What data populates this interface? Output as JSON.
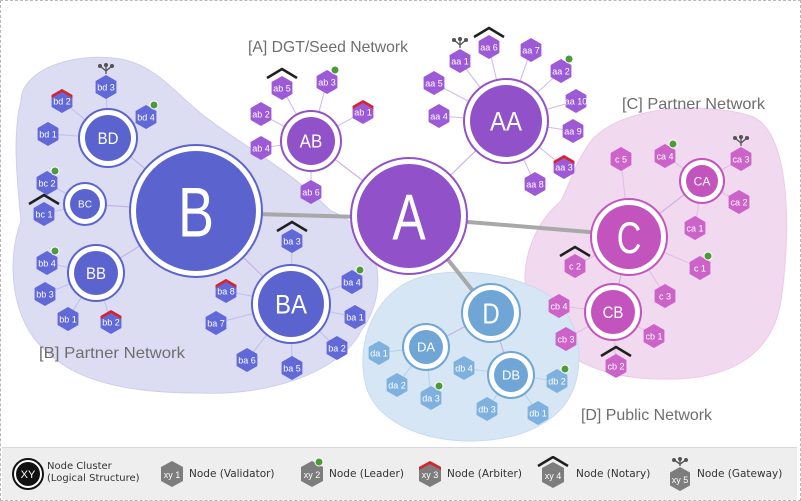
{
  "colors": {
    "blue_node": "#5b63cf",
    "blue_hex": "#6168d8",
    "purple_node": "#9152c9",
    "purple_hex": "#9d5ad6",
    "pink_node": "#c354be",
    "pink_hex": "#cc63c8",
    "light_node": "#6fa6d6",
    "light_hex": "#7fb1de",
    "leader_dot": "#4e9a3a",
    "arbiter_cap": "#d8242a",
    "notary_cap": "#1f1f1f",
    "legend_hex": "#7d7d7d"
  },
  "regions": {
    "dgt_seed": "[A] DGT/Seed Network",
    "b_partner": "[B] Partner Network",
    "c_partner": "[C] Partner Network",
    "d_public": "[D] Public Network"
  },
  "clusters": {
    "A": "A",
    "B": "B",
    "C": "C",
    "D": "D",
    "AA": "AA",
    "AB": "AB",
    "BA": "BA",
    "BB": "BB",
    "BC": "BC",
    "BD": "BD",
    "CA": "CA",
    "CB": "CB",
    "DA": "DA",
    "DB": "DB"
  },
  "nodes": {
    "aa1": "aa 1",
    "aa2": "aa 2",
    "aa3": "aa 3",
    "aa4": "aa 4",
    "aa5": "aa 5",
    "aa6": "aa 6",
    "aa7": "aa 7",
    "aa8": "aa 8",
    "aa9": "aa 9",
    "aa10": "aa 10",
    "ab1": "ab 1",
    "ab2": "ab 2",
    "ab3": "ab 3",
    "ab4": "ab 4",
    "ab5": "ab 5",
    "ab6": "ab 6",
    "ba1": "ba 1",
    "ba2": "ba 2",
    "ba3": "ba 3",
    "ba4": "ba 4",
    "ba5": "ba 5",
    "ba6": "ba 6",
    "ba7": "ba 7",
    "ba8": "ba 8",
    "bb1": "bb 1",
    "bb2": "bb 2",
    "bb3": "bb 3",
    "bb4": "bb 4",
    "bc1": "bc 1",
    "bc2": "bc 2",
    "bd1": "bd 1",
    "bd2": "bd 2",
    "bd3": "bd 3",
    "bd4": "bd 4",
    "ca1": "ca 1",
    "ca2": "ca 2",
    "ca3": "ca 3",
    "ca4": "ca 4",
    "c1": "c 1",
    "c2": "c 2",
    "c3": "c 3",
    "c5": "c 5",
    "cb1": "cb 1",
    "cb2": "cb 2",
    "cb3": "cb 3",
    "cb4": "cb 4",
    "da1": "da 1",
    "da2": "da 2",
    "da3": "da 3",
    "db1": "db 1",
    "db2": "db 2",
    "db3": "db 3",
    "db4": "db 4"
  },
  "legend": {
    "cluster_symbol": "XY",
    "cluster_line1": "Node Cluster",
    "cluster_line2": "(Logical Structure)",
    "validator_symbol": "xy 1",
    "validator_label": "Node (Validator)",
    "leader_symbol": "xy 2",
    "leader_label": "Node (Leader)",
    "arbiter_symbol": "xy 3",
    "arbiter_label": "Node (Arbiter)",
    "notary_symbol": "xy 4",
    "notary_label": "Node (Notary)",
    "gateway_symbol": "xy 5",
    "gateway_label": "Node (Gateway)"
  }
}
